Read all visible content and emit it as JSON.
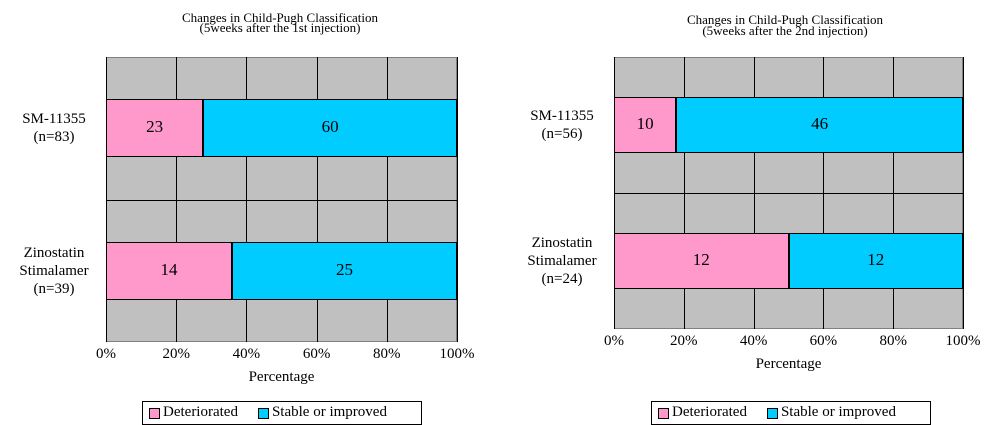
{
  "chart_data": [
    {
      "type": "bar",
      "orientation": "horizontal",
      "stacking": "percent",
      "title": "Changes in Child-Pugh Classification",
      "subtitle": "(5weeks after the 1st injection)",
      "x_label": "Percentage",
      "categories": [
        "SM-11355\n(n=83)",
        "Zinostatin\nStimalamer\n(n=39)"
      ],
      "series": [
        {
          "name": "Deteriorated",
          "color": "#ff99cc",
          "values": [
            23,
            14
          ]
        },
        {
          "name": "Stable or improved",
          "color": "#00ccff",
          "values": [
            60,
            25
          ]
        }
      ],
      "xlim": [
        0,
        100
      ],
      "xticks": [
        {
          "value": 0,
          "label": "0%"
        },
        {
          "value": 20,
          "label": "20%"
        },
        {
          "value": 40,
          "label": "40%"
        },
        {
          "value": 60,
          "label": "60%"
        },
        {
          "value": 80,
          "label": "80%"
        },
        {
          "value": 100,
          "label": "100%"
        }
      ],
      "grid": true,
      "legend": "bottom"
    },
    {
      "type": "bar",
      "orientation": "horizontal",
      "stacking": "percent",
      "title": "Changes in Child-Pugh Classification",
      "subtitle": "(5weeks after the 2nd injection)",
      "x_label": "Percentage",
      "categories": [
        "SM-11355\n(n=56)",
        "Zinostatin\nStimalamer\n(n=24)"
      ],
      "series": [
        {
          "name": "Deteriorated",
          "color": "#ff99cc",
          "values": [
            10,
            12
          ]
        },
        {
          "name": "Stable or improved",
          "color": "#00ccff",
          "values": [
            46,
            12
          ]
        }
      ],
      "xlim": [
        0,
        100
      ],
      "xticks": [
        {
          "value": 0,
          "label": "0%"
        },
        {
          "value": 20,
          "label": "20%"
        },
        {
          "value": 40,
          "label": "40%"
        },
        {
          "value": 60,
          "label": "60%"
        },
        {
          "value": 80,
          "label": "80%"
        },
        {
          "value": 100,
          "label": "100%"
        }
      ],
      "grid": true,
      "legend": "bottom"
    }
  ]
}
